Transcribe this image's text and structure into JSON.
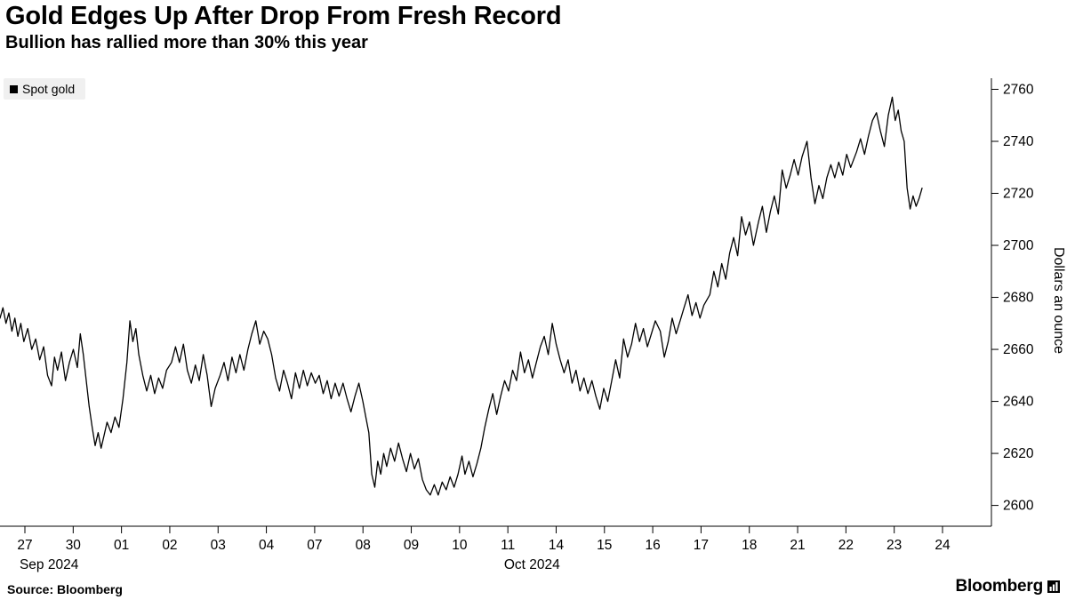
{
  "header": {
    "title": "Gold Edges Up After Drop From Fresh Record",
    "subtitle": "Bullion has rallied more than 30% this year"
  },
  "legend": {
    "label": "Spot gold",
    "marker_color": "#000000"
  },
  "footer": {
    "source": "Source: Bloomberg",
    "brand": "Bloomberg"
  },
  "chart_data": {
    "type": "line",
    "title": "Gold Edges Up After Drop From Fresh Record",
    "series_name": "Spot gold",
    "xlabel": "",
    "ylabel": "Dollars an ounce",
    "ylim": [
      2592,
      2767
    ],
    "y_ticks": [
      2600,
      2620,
      2640,
      2660,
      2680,
      2700,
      2720,
      2740,
      2760
    ],
    "x_ticks": [
      "27",
      "30",
      "01",
      "02",
      "03",
      "04",
      "07",
      "08",
      "09",
      "10",
      "11",
      "14",
      "15",
      "16",
      "17",
      "18",
      "21",
      "22",
      "23",
      "24"
    ],
    "months": [
      {
        "label": "Sep 2024",
        "from_tick": 0,
        "to_tick": 1
      },
      {
        "label": "Oct 2024",
        "from_tick": 2,
        "to_tick": 19
      }
    ],
    "line_color": "#000000",
    "grid": false,
    "legend_position": "top-left",
    "points": [
      [
        0,
        2672
      ],
      [
        0.3,
        2676
      ],
      [
        0.6,
        2670
      ],
      [
        0.9,
        2674
      ],
      [
        1.2,
        2667
      ],
      [
        1.5,
        2672
      ],
      [
        1.8,
        2665
      ],
      [
        2.1,
        2670
      ],
      [
        2.4,
        2663
      ],
      [
        2.8,
        2668
      ],
      [
        3.2,
        2660
      ],
      [
        3.6,
        2664
      ],
      [
        4,
        2656
      ],
      [
        4.4,
        2661
      ],
      [
        4.8,
        2650
      ],
      [
        5.2,
        2646
      ],
      [
        5.5,
        2657
      ],
      [
        5.8,
        2652
      ],
      [
        6.2,
        2659
      ],
      [
        6.6,
        2648
      ],
      [
        7,
        2655
      ],
      [
        7.4,
        2660
      ],
      [
        7.8,
        2653
      ],
      [
        8.1,
        2666
      ],
      [
        8.4,
        2658
      ],
      [
        8.7,
        2648
      ],
      [
        9,
        2638
      ],
      [
        9.3,
        2630
      ],
      [
        9.6,
        2623
      ],
      [
        9.9,
        2628
      ],
      [
        10.2,
        2622
      ],
      [
        10.5,
        2627
      ],
      [
        10.8,
        2632
      ],
      [
        11.2,
        2628
      ],
      [
        11.6,
        2634
      ],
      [
        12,
        2630
      ],
      [
        12.4,
        2641
      ],
      [
        12.8,
        2655
      ],
      [
        13.1,
        2671
      ],
      [
        13.4,
        2663
      ],
      [
        13.7,
        2668
      ],
      [
        14,
        2658
      ],
      [
        14.4,
        2650
      ],
      [
        14.8,
        2644
      ],
      [
        15.2,
        2650
      ],
      [
        15.6,
        2643
      ],
      [
        16,
        2649
      ],
      [
        16.4,
        2645
      ],
      [
        16.8,
        2652
      ],
      [
        17.3,
        2655
      ],
      [
        17.7,
        2661
      ],
      [
        18.1,
        2655
      ],
      [
        18.5,
        2662
      ],
      [
        18.9,
        2652
      ],
      [
        19.3,
        2647
      ],
      [
        19.7,
        2654
      ],
      [
        20.1,
        2648
      ],
      [
        20.5,
        2658
      ],
      [
        20.9,
        2650
      ],
      [
        21.3,
        2638
      ],
      [
        21.7,
        2645
      ],
      [
        22.2,
        2650
      ],
      [
        22.6,
        2655
      ],
      [
        23,
        2648
      ],
      [
        23.4,
        2657
      ],
      [
        23.8,
        2651
      ],
      [
        24.2,
        2658
      ],
      [
        24.6,
        2652
      ],
      [
        25,
        2660
      ],
      [
        25.4,
        2666
      ],
      [
        25.8,
        2671
      ],
      [
        26.2,
        2662
      ],
      [
        26.6,
        2667
      ],
      [
        27,
        2664
      ],
      [
        27.4,
        2658
      ],
      [
        27.8,
        2649
      ],
      [
        28.2,
        2644
      ],
      [
        28.6,
        2652
      ],
      [
        29,
        2647
      ],
      [
        29.4,
        2641
      ],
      [
        29.8,
        2651
      ],
      [
        30.2,
        2645
      ],
      [
        30.6,
        2652
      ],
      [
        31,
        2646
      ],
      [
        31.4,
        2651
      ],
      [
        31.8,
        2647
      ],
      [
        32.2,
        2650
      ],
      [
        32.6,
        2643
      ],
      [
        33,
        2648
      ],
      [
        33.4,
        2641
      ],
      [
        33.8,
        2647
      ],
      [
        34.2,
        2642
      ],
      [
        34.6,
        2647
      ],
      [
        35,
        2641
      ],
      [
        35.4,
        2636
      ],
      [
        35.8,
        2642
      ],
      [
        36.2,
        2647
      ],
      [
        36.6,
        2640
      ],
      [
        36.9,
        2634
      ],
      [
        37.2,
        2628
      ],
      [
        37.5,
        2612
      ],
      [
        37.8,
        2607
      ],
      [
        38.1,
        2617
      ],
      [
        38.4,
        2612
      ],
      [
        38.7,
        2620
      ],
      [
        39,
        2615
      ],
      [
        39.4,
        2622
      ],
      [
        39.8,
        2617
      ],
      [
        40.2,
        2624
      ],
      [
        40.6,
        2618
      ],
      [
        41,
        2613
      ],
      [
        41.4,
        2620
      ],
      [
        41.8,
        2614
      ],
      [
        42.2,
        2618
      ],
      [
        42.6,
        2610
      ],
      [
        43,
        2606
      ],
      [
        43.4,
        2604
      ],
      [
        43.8,
        2608
      ],
      [
        44.2,
        2604
      ],
      [
        44.6,
        2609
      ],
      [
        45,
        2606
      ],
      [
        45.4,
        2611
      ],
      [
        45.8,
        2607
      ],
      [
        46.2,
        2612
      ],
      [
        46.6,
        2619
      ],
      [
        46.9,
        2612
      ],
      [
        47.3,
        2617
      ],
      [
        47.7,
        2611
      ],
      [
        48.1,
        2616
      ],
      [
        48.5,
        2622
      ],
      [
        48.9,
        2630
      ],
      [
        49.3,
        2637
      ],
      [
        49.7,
        2643
      ],
      [
        50.1,
        2635
      ],
      [
        50.5,
        2642
      ],
      [
        50.9,
        2648
      ],
      [
        51.3,
        2644
      ],
      [
        51.7,
        2652
      ],
      [
        52.1,
        2648
      ],
      [
        52.5,
        2659
      ],
      [
        52.9,
        2651
      ],
      [
        53.3,
        2656
      ],
      [
        53.7,
        2649
      ],
      [
        54.1,
        2655
      ],
      [
        54.5,
        2661
      ],
      [
        54.9,
        2665
      ],
      [
        55.3,
        2658
      ],
      [
        55.7,
        2670
      ],
      [
        56.1,
        2662
      ],
      [
        56.5,
        2656
      ],
      [
        56.9,
        2651
      ],
      [
        57.3,
        2656
      ],
      [
        57.7,
        2647
      ],
      [
        58.1,
        2652
      ],
      [
        58.5,
        2644
      ],
      [
        58.9,
        2649
      ],
      [
        59.3,
        2643
      ],
      [
        59.7,
        2648
      ],
      [
        60.1,
        2642
      ],
      [
        60.5,
        2637
      ],
      [
        60.9,
        2645
      ],
      [
        61.3,
        2640
      ],
      [
        61.7,
        2648
      ],
      [
        62.1,
        2656
      ],
      [
        62.5,
        2649
      ],
      [
        62.9,
        2664
      ],
      [
        63.3,
        2657
      ],
      [
        63.7,
        2662
      ],
      [
        64.1,
        2670
      ],
      [
        64.5,
        2663
      ],
      [
        64.9,
        2668
      ],
      [
        65.3,
        2661
      ],
      [
        65.7,
        2666
      ],
      [
        66.1,
        2671
      ],
      [
        66.6,
        2667
      ],
      [
        67,
        2657
      ],
      [
        67.4,
        2663
      ],
      [
        67.8,
        2672
      ],
      [
        68.2,
        2666
      ],
      [
        68.6,
        2671
      ],
      [
        69,
        2676
      ],
      [
        69.4,
        2681
      ],
      [
        69.8,
        2673
      ],
      [
        70.2,
        2678
      ],
      [
        70.6,
        2672
      ],
      [
        71,
        2677
      ],
      [
        71.6,
        2681
      ],
      [
        72,
        2690
      ],
      [
        72.4,
        2684
      ],
      [
        72.8,
        2693
      ],
      [
        73.2,
        2687
      ],
      [
        73.6,
        2697
      ],
      [
        74,
        2703
      ],
      [
        74.4,
        2696
      ],
      [
        74.8,
        2711
      ],
      [
        75.2,
        2704
      ],
      [
        75.6,
        2709
      ],
      [
        76,
        2700
      ],
      [
        76.5,
        2709
      ],
      [
        76.9,
        2715
      ],
      [
        77.3,
        2705
      ],
      [
        77.7,
        2713
      ],
      [
        78.1,
        2719
      ],
      [
        78.5,
        2712
      ],
      [
        78.9,
        2729
      ],
      [
        79.3,
        2722
      ],
      [
        79.7,
        2727
      ],
      [
        80.1,
        2733
      ],
      [
        80.5,
        2727
      ],
      [
        80.9,
        2734
      ],
      [
        81.4,
        2740
      ],
      [
        81.8,
        2726
      ],
      [
        82.2,
        2716
      ],
      [
        82.6,
        2723
      ],
      [
        83,
        2718
      ],
      [
        83.4,
        2726
      ],
      [
        83.8,
        2731
      ],
      [
        84.2,
        2726
      ],
      [
        84.6,
        2732
      ],
      [
        85,
        2727
      ],
      [
        85.4,
        2735
      ],
      [
        85.8,
        2730
      ],
      [
        86.4,
        2736
      ],
      [
        86.8,
        2741
      ],
      [
        87.2,
        2735
      ],
      [
        87.6,
        2742
      ],
      [
        88,
        2748
      ],
      [
        88.4,
        2751
      ],
      [
        88.8,
        2744
      ],
      [
        89.2,
        2738
      ],
      [
        89.6,
        2750
      ],
      [
        90,
        2757
      ],
      [
        90.3,
        2748
      ],
      [
        90.6,
        2752
      ],
      [
        90.9,
        2744
      ],
      [
        91.2,
        2740
      ],
      [
        91.5,
        2722
      ],
      [
        91.8,
        2714
      ],
      [
        92.1,
        2719
      ],
      [
        92.4,
        2715
      ],
      [
        92.7,
        2718
      ],
      [
        93,
        2722
      ]
    ]
  }
}
